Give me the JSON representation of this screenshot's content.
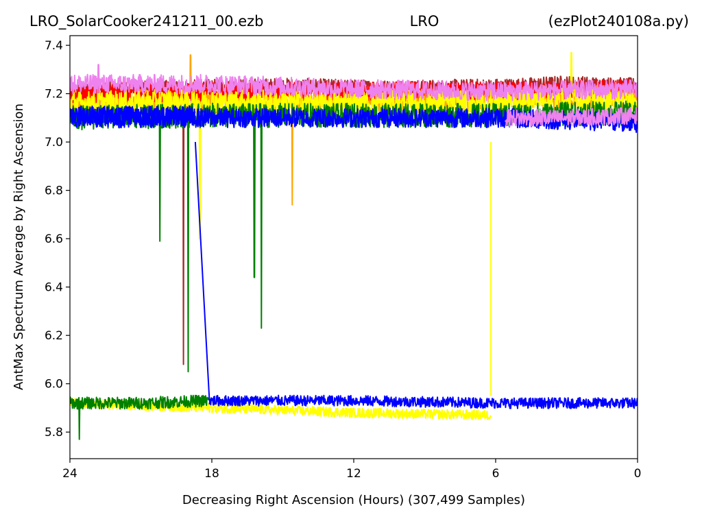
{
  "title": {
    "left": "LRO_SolarCooker241211_00.ezb",
    "center": "LRO",
    "right": "(ezPlot240108a.py)"
  },
  "chart_data": {
    "type": "line",
    "xlabel": "Decreasing Right Ascension (Hours) (307,499 Samples)",
    "ylabel": "AntMax Spectrum Average by Right Ascension",
    "xlim": [
      24,
      0
    ],
    "ylim": [
      5.69,
      7.44
    ],
    "xticks": [
      24,
      18,
      12,
      6,
      0
    ],
    "xtick_labels": [
      "24",
      "18",
      "12",
      "6",
      "0"
    ],
    "yticks": [
      5.8,
      6.0,
      6.2,
      6.4,
      6.6,
      6.8,
      7.0,
      7.2,
      7.4
    ],
    "ytick_labels": [
      "5.8",
      "6.0",
      "6.2",
      "6.4",
      "6.6",
      "6.8",
      "7.0",
      "7.2",
      "7.4"
    ],
    "grid": false,
    "series": [
      {
        "color": "#a52a2a",
        "x": [
          24,
          20,
          15,
          10,
          5,
          3.2,
          0
        ],
        "y": [
          7.21,
          7.22,
          7.23,
          7.22,
          7.23,
          7.24,
          7.23
        ],
        "noise": 0.035,
        "dips": [
          {
            "x": 19.2,
            "y": 6.08
          }
        ]
      },
      {
        "color": "#ffa500",
        "x": [
          24,
          20,
          15,
          10,
          5,
          0
        ],
        "y": [
          7.16,
          7.17,
          7.17,
          7.17,
          7.18,
          7.19
        ],
        "noise": 0.05,
        "dips": [
          {
            "x": 14.6,
            "y": 6.74
          }
        ],
        "spikes": [
          {
            "x": 18.9,
            "y": 7.36
          }
        ]
      },
      {
        "color": "#ff0000",
        "x": [
          24,
          18,
          12,
          6,
          0
        ],
        "y": [
          7.2,
          7.21,
          7.21,
          7.21,
          7.22
        ],
        "noise": 0.04
      },
      {
        "color": "#ffff00",
        "x": [
          24,
          18,
          12,
          6,
          0
        ],
        "y": [
          7.16,
          7.17,
          7.16,
          7.17,
          7.18
        ],
        "noise": 0.05,
        "dips": [
          {
            "x": 18.5,
            "y": 6.6
          }
        ],
        "spikes": [
          {
            "x": 2.8,
            "y": 7.37
          }
        ]
      },
      {
        "color": "#ffff00",
        "x": [
          24,
          18,
          12,
          6.2
        ],
        "y": [
          5.92,
          5.9,
          5.88,
          5.87
        ],
        "noise": 0.02
      },
      {
        "color": "#ffff00",
        "x": [
          6.2,
          6.2
        ],
        "y": [
          5.95,
          7.0
        ],
        "noise": 0
      },
      {
        "color": "#ee82ee",
        "x": [
          24,
          18,
          12,
          6,
          0
        ],
        "y": [
          7.24,
          7.24,
          7.22,
          7.21,
          7.22
        ],
        "noise": 0.04,
        "spikes": [
          {
            "x": 22.8,
            "y": 7.32
          }
        ]
      },
      {
        "color": "#008000",
        "x": [
          24,
          18,
          12,
          6,
          0
        ],
        "y": [
          7.1,
          7.11,
          7.11,
          7.11,
          7.12
        ],
        "noise": 0.05,
        "dips": [
          {
            "x": 20.2,
            "y": 6.59
          },
          {
            "x": 19.0,
            "y": 6.05
          },
          {
            "x": 16.2,
            "y": 6.44
          },
          {
            "x": 15.9,
            "y": 6.23
          }
        ]
      },
      {
        "color": "#008000",
        "x": [
          24,
          21,
          18.1
        ],
        "y": [
          5.92,
          5.92,
          5.93
        ],
        "noise": 0.025,
        "dips": [
          {
            "x": 23.6,
            "y": 5.77
          }
        ]
      },
      {
        "color": "#0000ff",
        "x": [
          24,
          18.7
        ],
        "y": [
          7.11,
          7.11
        ],
        "noise": 0.04
      },
      {
        "color": "#0000ff",
        "x": [
          18.7,
          18.1
        ],
        "y": [
          7.0,
          5.93
        ],
        "noise": 0
      },
      {
        "color": "#0000ff",
        "x": [
          18.1,
          12,
          6,
          0
        ],
        "y": [
          5.93,
          5.93,
          5.92,
          5.92
        ],
        "noise": 0.022
      },
      {
        "color": "#0000ff",
        "x": [
          24,
          18,
          12,
          6,
          0
        ],
        "y": [
          7.1,
          7.1,
          7.1,
          7.1,
          7.08
        ],
        "noise": 0.04
      },
      {
        "color": "#ee82ee",
        "x": [
          5.6,
          3,
          0
        ],
        "y": [
          7.1,
          7.1,
          7.11
        ],
        "noise": 0.035
      }
    ]
  }
}
